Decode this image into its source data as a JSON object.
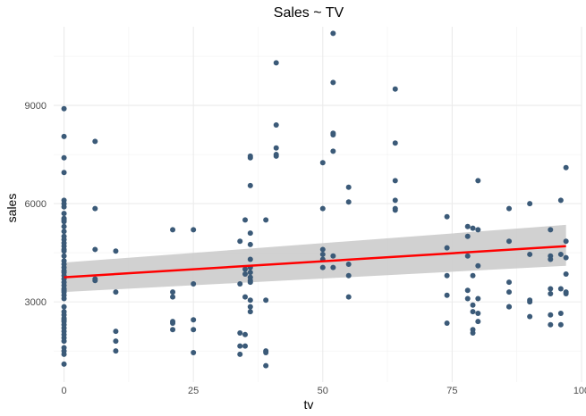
{
  "chart_data": {
    "type": "scatter",
    "title": "Sales ~ TV",
    "xlabel": "tv",
    "ylabel": "sales",
    "xlim": [
      -2,
      100
    ],
    "ylim": [
      550,
      11400
    ],
    "x_ticks": [
      0,
      25,
      50,
      75,
      100
    ],
    "y_ticks": [
      3000,
      6000,
      9000
    ],
    "x_minor": [
      12.5,
      37.5,
      62.5,
      87.5
    ],
    "y_minor": [
      1500,
      4500,
      7500,
      10500
    ],
    "grid": true,
    "colors": {
      "points": "#3b5a78",
      "trend": "#ff0000",
      "band": "#cccccc",
      "grid": "#ebebeb"
    },
    "trend": {
      "x": [
        0,
        97
      ],
      "y": [
        3750,
        4700
      ]
    },
    "confidence_band": {
      "x": [
        0,
        97
      ],
      "lower": [
        3300,
        4100
      ],
      "upper": [
        4200,
        5350
      ]
    },
    "points": {
      "x": [
        0,
        0,
        0,
        0,
        0,
        0,
        0,
        0,
        0,
        0,
        0,
        0,
        0,
        0,
        0,
        0,
        0,
        0,
        0,
        0,
        0,
        0,
        0,
        0,
        0,
        0,
        0,
        0,
        0,
        0,
        0,
        0,
        0,
        0,
        0,
        0,
        0,
        0,
        0,
        0,
        0,
        0,
        0,
        0,
        0,
        0,
        0,
        0,
        0,
        0,
        6,
        6,
        6,
        6,
        6,
        10,
        10,
        10,
        10,
        10,
        21,
        21,
        21,
        21,
        21,
        21,
        25,
        25,
        25,
        25,
        25,
        34,
        34,
        34,
        34,
        34,
        35,
        35,
        35,
        35,
        35,
        35,
        36,
        36,
        36,
        36,
        36,
        36,
        36,
        36,
        36,
        36,
        36,
        36,
        36,
        36,
        39,
        39,
        39,
        39,
        39,
        41,
        41,
        41,
        41,
        41,
        50,
        50,
        50,
        50,
        50,
        50,
        52,
        52,
        52,
        52,
        52,
        52,
        52,
        55,
        55,
        55,
        55,
        55,
        64,
        64,
        64,
        64,
        64,
        64,
        74,
        74,
        74,
        74,
        74,
        78,
        78,
        78,
        78,
        78,
        79,
        79,
        79,
        79,
        79,
        79,
        80,
        80,
        80,
        80,
        80,
        80,
        86,
        86,
        86,
        86,
        86,
        86,
        90,
        90,
        90,
        90,
        90,
        94,
        94,
        94,
        94,
        94,
        94,
        94,
        96,
        96,
        96,
        96,
        96,
        97,
        97,
        97,
        97,
        97,
        97
      ],
      "y": [
        8900,
        8050,
        7400,
        6950,
        6100,
        5900,
        5700,
        5550,
        5450,
        5300,
        5150,
        5000,
        4800,
        4700,
        4550,
        4400,
        4250,
        4150,
        4050,
        3900,
        3800,
        3700,
        3600,
        3500,
        3400,
        3300,
        3200,
        3100,
        2700,
        2600,
        2500,
        2400,
        2300,
        2200,
        2100,
        2000,
        1900,
        1800,
        1600,
        1500,
        1400,
        1100,
        6000,
        5500,
        4900,
        4600,
        3950,
        3350,
        2850,
        2450,
        7900,
        5850,
        4600,
        3700,
        3650,
        4550,
        3300,
        2100,
        1800,
        1500,
        5200,
        3300,
        3150,
        2400,
        2350,
        2150,
        5200,
        3550,
        2450,
        2150,
        1450,
        4850,
        3550,
        2050,
        1650,
        1400,
        5500,
        4000,
        3850,
        3150,
        2000,
        1650,
        7450,
        7400,
        6550,
        5100,
        4750,
        4300,
        4050,
        3900,
        3750,
        3650,
        3600,
        3050,
        2850,
        2700,
        5500,
        3050,
        1500,
        1450,
        1050,
        10300,
        8400,
        7700,
        7500,
        7450,
        7250,
        5850,
        4600,
        4450,
        4300,
        4050,
        11200,
        9700,
        8150,
        8100,
        7600,
        4400,
        4050,
        6500,
        6050,
        4150,
        3800,
        3150,
        9500,
        7850,
        6700,
        6100,
        5850,
        5800,
        5600,
        4650,
        3800,
        3200,
        2350,
        5300,
        5000,
        4400,
        3350,
        3100,
        5250,
        3800,
        2900,
        2700,
        2150,
        2050,
        6700,
        5200,
        4100,
        3100,
        2650,
        2400,
        5850,
        4850,
        3600,
        3300,
        2850,
        2850,
        6000,
        4450,
        3050,
        3000,
        2550,
        5200,
        4400,
        4300,
        3400,
        3250,
        2600,
        2300,
        6100,
        4450,
        3400,
        2650,
        2300,
        7100,
        4850,
        4350,
        3850,
        3300,
        3250
      ]
    }
  }
}
